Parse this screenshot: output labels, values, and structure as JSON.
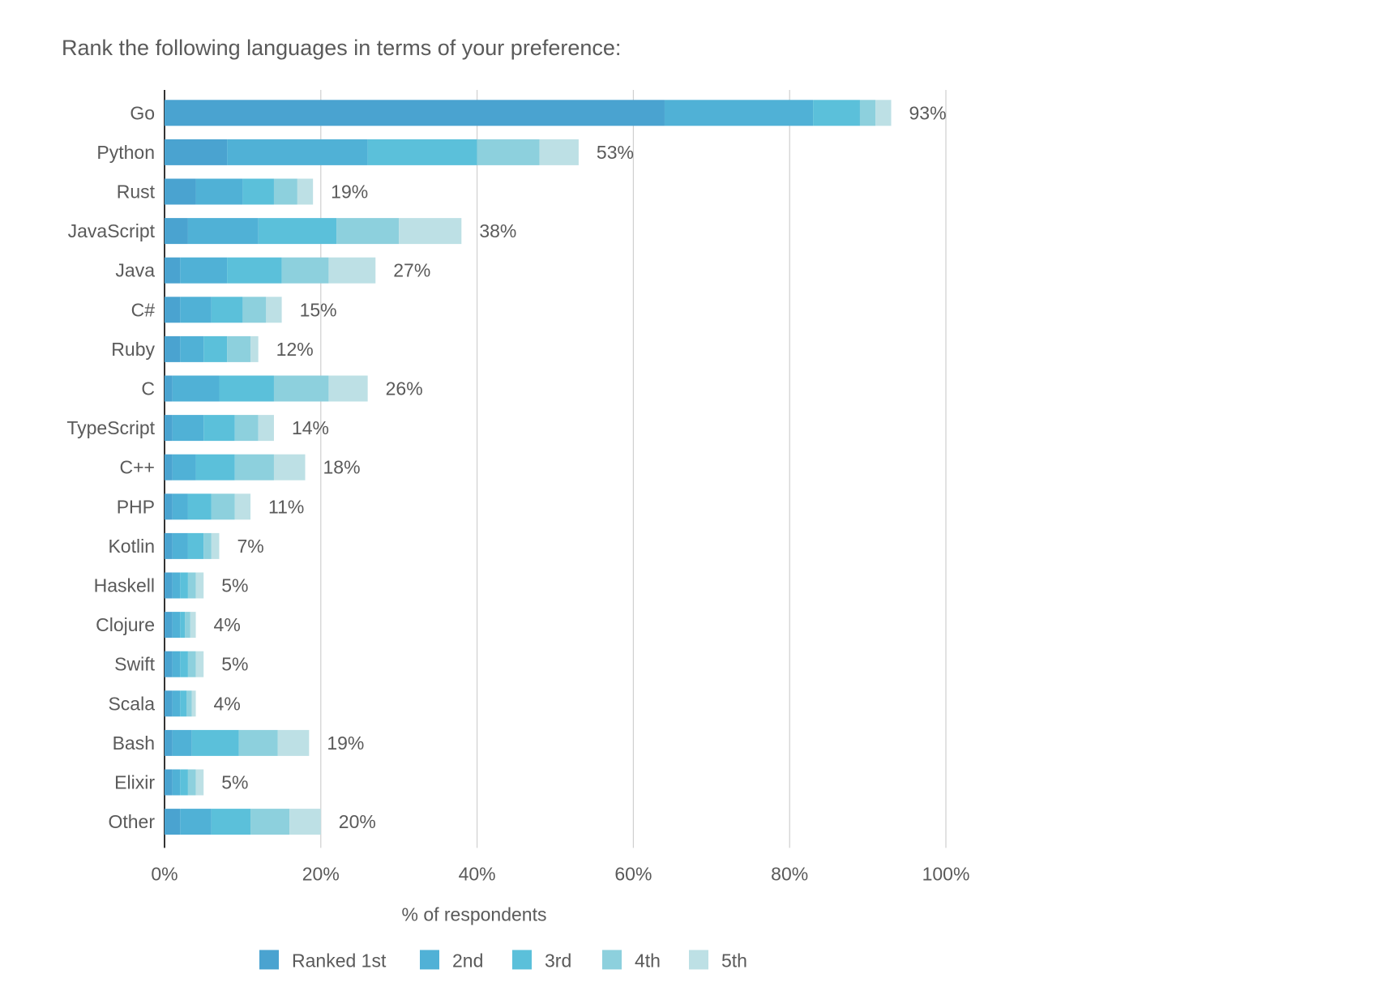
{
  "chart_data": {
    "type": "bar",
    "orientation": "horizontal",
    "stacked": true,
    "title": "Rank the following languages in terms of your preference:",
    "xlabel": "% of respondents",
    "ylabel": "",
    "xlim": [
      0,
      100
    ],
    "xticks": [
      "0%",
      "20%",
      "40%",
      "60%",
      "80%",
      "100%"
    ],
    "grid": true,
    "legend_position": "bottom",
    "categories": [
      "Go",
      "Python",
      "Rust",
      "JavaScript",
      "Java",
      "C#",
      "Ruby",
      "C",
      "TypeScript",
      "C++",
      "PHP",
      "Kotlin",
      "Haskell",
      "Clojure",
      "Swift",
      "Scala",
      "Bash",
      "Elixir",
      "Other"
    ],
    "totals": [
      "93%",
      "53%",
      "19%",
      "38%",
      "27%",
      "15%",
      "12%",
      "26%",
      "14%",
      "18%",
      "11%",
      "7%",
      "5%",
      "4%",
      "5%",
      "4%",
      "19%",
      "5%",
      "20%"
    ],
    "series": [
      {
        "name": "Ranked 1st",
        "color": "#4aa3d0",
        "values": [
          64,
          8,
          4,
          3,
          2,
          2,
          2,
          1,
          1,
          1,
          1,
          1,
          1,
          1,
          1,
          1,
          1,
          1,
          2
        ]
      },
      {
        "name": "2nd",
        "color": "#50b1d6",
        "values": [
          19,
          18,
          6,
          9,
          6,
          4,
          3,
          6,
          4,
          3,
          2,
          2,
          1,
          1,
          1,
          1,
          2.5,
          1,
          4
        ]
      },
      {
        "name": "3rd",
        "color": "#5bc0da",
        "values": [
          6,
          14,
          4,
          10,
          7,
          4,
          3,
          7,
          4,
          5,
          3,
          2,
          1,
          0.6,
          1,
          0.8,
          6,
          1,
          5
        ]
      },
      {
        "name": "4th",
        "color": "#8dd0dd",
        "values": [
          2,
          8,
          3,
          8,
          6,
          3,
          3,
          7,
          3,
          5,
          3,
          1,
          1,
          0.7,
          1,
          0.7,
          5,
          1,
          5
        ]
      },
      {
        "name": "5th",
        "color": "#bde0e5",
        "values": [
          2,
          5,
          2,
          8,
          6,
          2,
          1,
          5,
          2,
          4,
          2,
          1,
          1,
          0.7,
          1,
          0.5,
          4,
          1,
          4
        ]
      }
    ]
  }
}
